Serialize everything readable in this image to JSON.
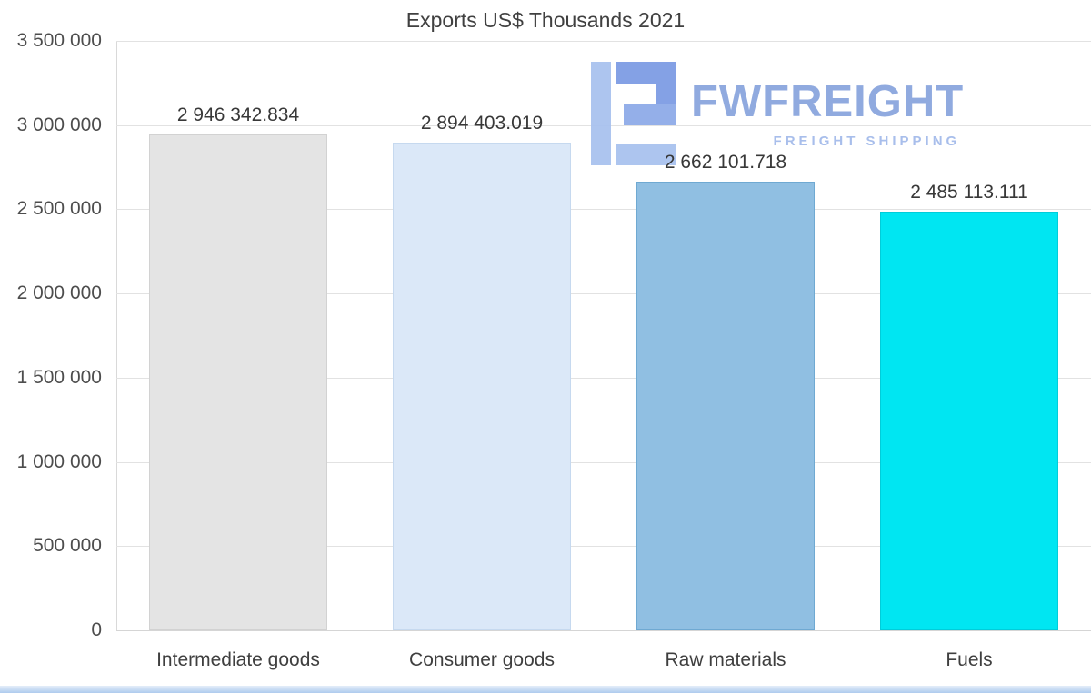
{
  "title": "Exports US$ Thousands 2021",
  "watermark": {
    "brand": "FWFREIGHT",
    "tagline": "FREIGHT SHIPPING",
    "brand_color": "#8ba6de",
    "tagline_color": "#a4bbea",
    "icon_color_dark": "#7e9de4",
    "icon_color_light": "#a9c2ef"
  },
  "chart_data": {
    "type": "bar",
    "title": "Exports US$ Thousands 2021",
    "categories": [
      "Intermediate goods",
      "Consumer goods",
      "Raw materials",
      "Fuels"
    ],
    "values": [
      2946342.834,
      2894403.019,
      2662101.718,
      2485113.111
    ],
    "display_values": [
      "2 946 342.834",
      "2 894 403.019",
      "2 662 101.718",
      "2 485 113.111"
    ],
    "bar_colors": [
      "#e4e4e4",
      "#dbe8f8",
      "#90bfe2",
      "#00e6f2"
    ],
    "bar_border_colors": [
      "#d2d2d2",
      "#c6d9ef",
      "#6fa9d2",
      "#00cdda"
    ],
    "xlabel": "",
    "ylabel": "",
    "ylim": [
      0,
      3500000
    ],
    "yticks": [
      0,
      500000,
      1000000,
      1500000,
      2000000,
      2500000,
      3000000,
      3500000
    ],
    "ytick_labels": [
      "0",
      "500 000",
      "1 000 000",
      "1 500 000",
      "2 000 000",
      "2 500 000",
      "3 000 000",
      "3 500 000"
    ],
    "grid": true,
    "legend": "none"
  }
}
